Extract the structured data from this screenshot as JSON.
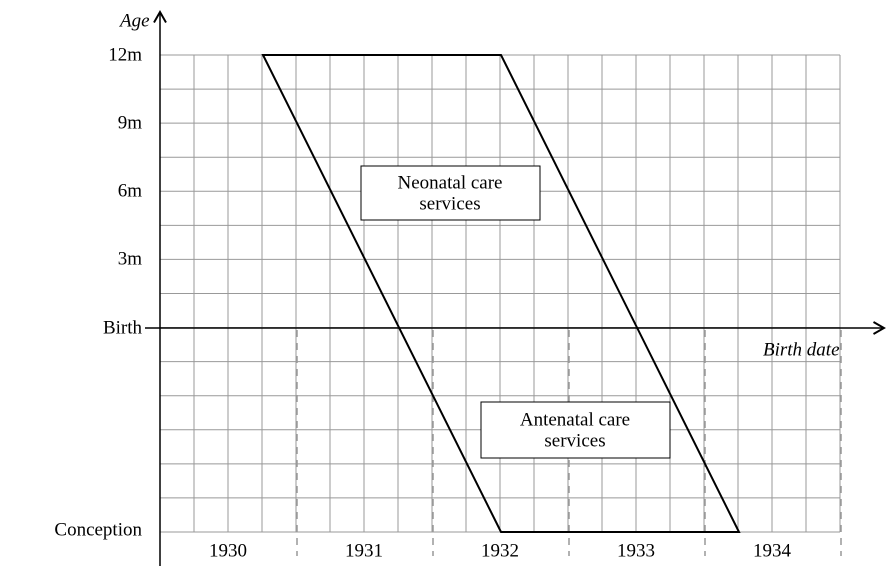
{
  "axes": {
    "y_title": "Age",
    "x_title": "Birth date",
    "y_labels": [
      "12m",
      "9m",
      "6m",
      "3m",
      "Birth",
      "Conception"
    ],
    "x_labels": [
      "1930",
      "1931",
      "1932",
      "1933",
      "1934"
    ]
  },
  "regions": [
    {
      "lines": [
        "Neonatal care",
        "services"
      ]
    },
    {
      "lines": [
        "Antenatal care",
        "services"
      ]
    }
  ]
}
